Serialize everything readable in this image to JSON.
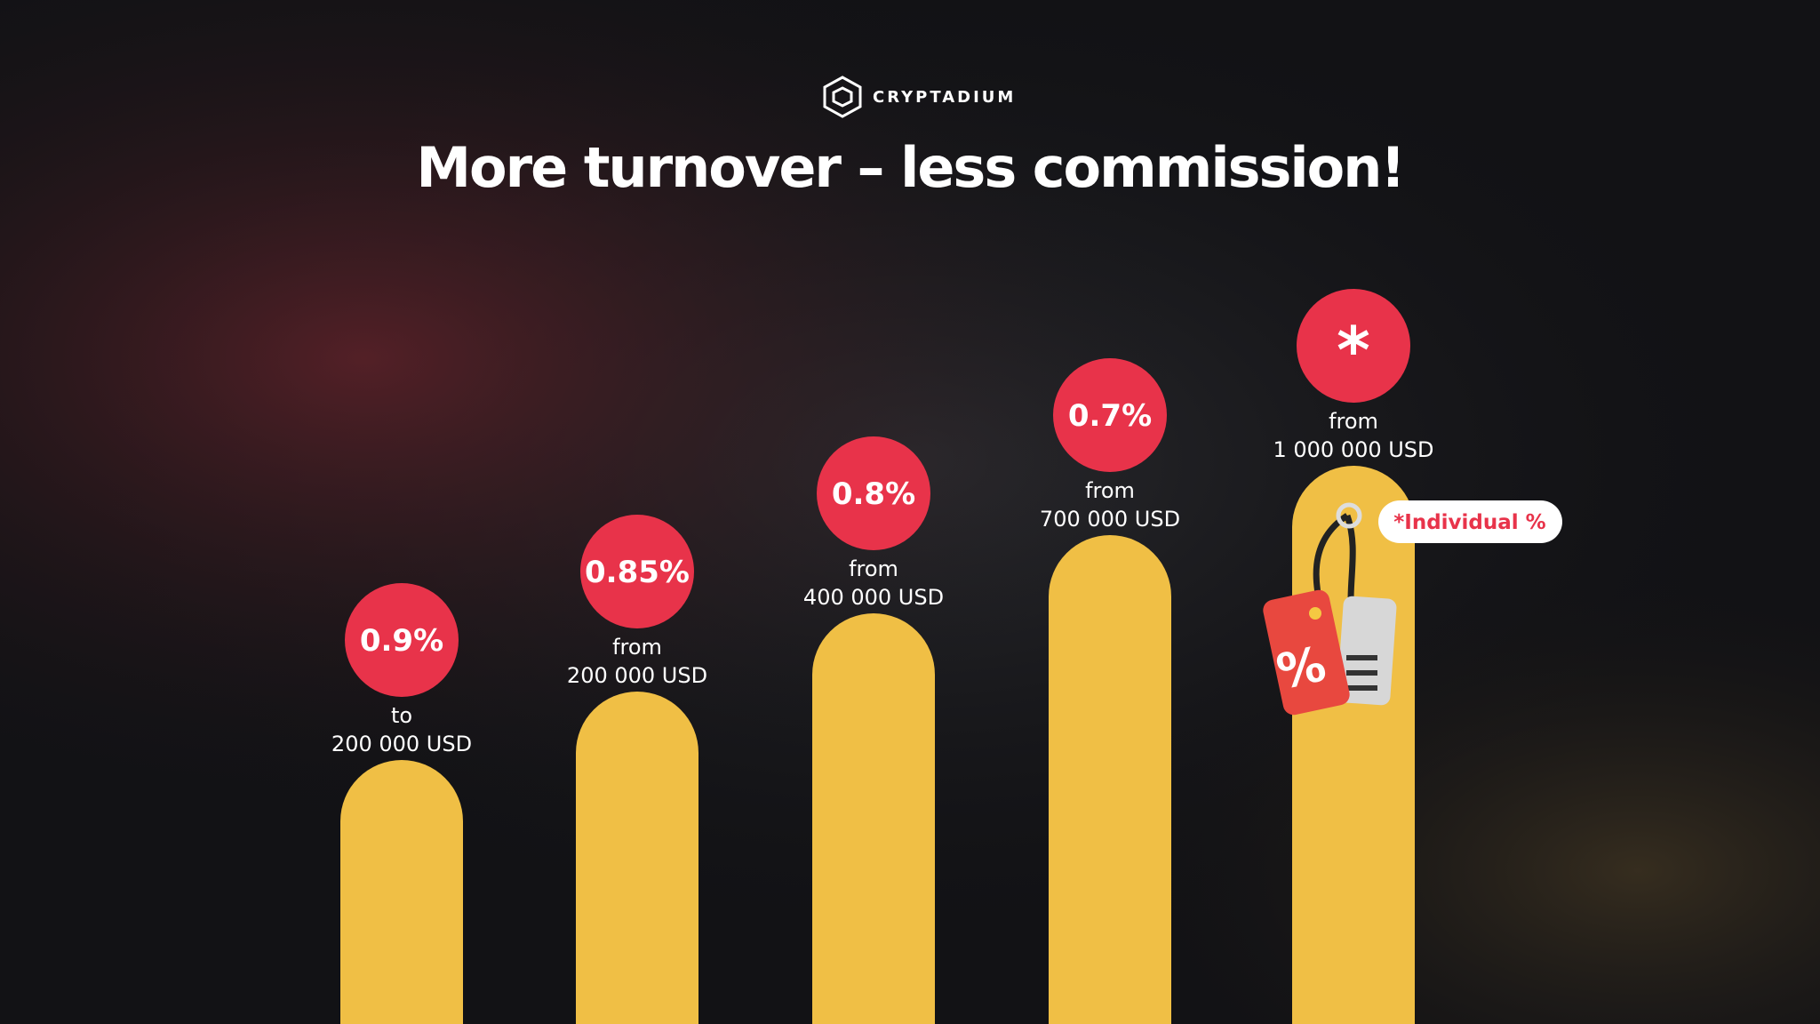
{
  "logo": {
    "text": "CRYPTADIUM"
  },
  "title": "More turnover – less commission!",
  "tiers": [
    {
      "rate": "0.9%",
      "prefix": "to",
      "amount": "200 000 USD"
    },
    {
      "rate": "0.85%",
      "prefix": "from",
      "amount": "200 000 USD"
    },
    {
      "rate": "0.8%",
      "prefix": "from",
      "amount": "400 000 USD"
    },
    {
      "rate": "0.7%",
      "prefix": "from",
      "amount": "700 000 USD"
    },
    {
      "rate": "*",
      "prefix": "from",
      "amount": "1 000 000 USD"
    }
  ],
  "note": "*Individual %"
}
